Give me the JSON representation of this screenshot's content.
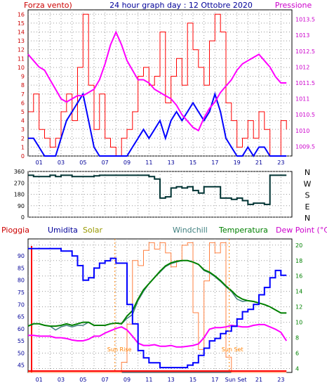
{
  "header": {
    "left_label": "Forza vento)",
    "title": "24 hour graph day : 12 Ottobre 2020",
    "right_label": "Pressione"
  },
  "colors": {
    "wind": "#ff0000",
    "wind_avg": "#0000ff",
    "pressure": "#ff00ff",
    "direction": "#003333",
    "humidity": "#0000ff",
    "solar": "#ff8040",
    "windchill": "#408080",
    "temperature": "#008000",
    "dewpoint": "#ff00ff",
    "rain": "#ff0000",
    "text_blue": "#000099",
    "text_red": "#cc0000",
    "text_olive": "#999900",
    "text_teal": "#408080",
    "text_green": "#008000",
    "text_magenta": "#cc00cc",
    "text_orange": "#ff8000"
  },
  "chart_data": [
    {
      "type": "line",
      "x": [
        0,
        0.5,
        1,
        1.5,
        2,
        2.5,
        3,
        3.5,
        4,
        4.5,
        5,
        5.5,
        6,
        6.5,
        7,
        7.5,
        8,
        8.5,
        9,
        9.5,
        10,
        10.5,
        11,
        11.5,
        12,
        12.5,
        13,
        13.5,
        14,
        14.5,
        15,
        15.5,
        16,
        16.5,
        17,
        17.5,
        18,
        18.5,
        19,
        19.5,
        20,
        20.5,
        21,
        21.5,
        22,
        22.5,
        23,
        23.5
      ],
      "x_tick_labels": [
        "01",
        "03",
        "05",
        "07",
        "09",
        "11",
        "13",
        "15",
        "17",
        "19",
        "21",
        "23"
      ],
      "series": [
        {
          "key": "wind_gust",
          "values": [
            5,
            7,
            3,
            2,
            1,
            2,
            5,
            7,
            4,
            10,
            16,
            8,
            3,
            7,
            2,
            1,
            0,
            2,
            3,
            5,
            9,
            10,
            8,
            9,
            14,
            6,
            9,
            11,
            8,
            15,
            12,
            10,
            8,
            13,
            16,
            14,
            6,
            4,
            1,
            2,
            4,
            2,
            5,
            3,
            0,
            0,
            4,
            3
          ]
        },
        {
          "key": "wind_avg",
          "values": [
            2,
            2,
            1,
            0,
            0,
            0,
            2,
            4,
            5,
            6,
            7,
            4,
            1,
            0,
            0,
            0,
            0,
            0,
            0,
            1,
            2,
            3,
            2,
            3,
            4,
            2,
            4,
            5,
            4,
            5,
            6,
            5,
            4,
            5,
            7,
            5,
            2,
            1,
            0,
            0,
            1,
            0,
            1,
            1,
            0,
            0,
            0,
            0
          ]
        },
        {
          "key": "pressure",
          "values": [
            1012.4,
            1012.2,
            1012.0,
            1011.9,
            1011.6,
            1011.3,
            1011.0,
            1010.9,
            1011.0,
            1011.1,
            1011.1,
            1011.2,
            1011.3,
            1011.6,
            1012.1,
            1012.7,
            1013.1,
            1012.7,
            1012.2,
            1011.9,
            1011.6,
            1011.6,
            1011.5,
            1011.3,
            1011.2,
            1011.1,
            1011.0,
            1010.8,
            1010.5,
            1010.3,
            1010.1,
            1010.0,
            1010.4,
            1010.7,
            1010.9,
            1011.2,
            1011.4,
            1011.6,
            1011.9,
            1012.1,
            1012.2,
            1012.3,
            1012.4,
            1012.2,
            1012.0,
            1011.7,
            1011.5,
            1011.5
          ]
        }
      ],
      "left_ylim": [
        0,
        16.5
      ],
      "left_ticks": [
        0,
        1,
        2,
        3,
        4,
        5,
        6,
        7,
        8,
        9,
        10,
        11,
        12,
        13,
        14,
        15,
        16
      ],
      "right_ylim": [
        1009.2,
        1013.8
      ],
      "right_ticks": [
        1009.5,
        1010,
        1010.5,
        1011,
        1011.5,
        1012,
        1012.5,
        1013,
        1013.5
      ]
    },
    {
      "type": "line",
      "series": [
        {
          "key": "wind_direction",
          "values": [
            330,
            320,
            320,
            320,
            330,
            320,
            330,
            330,
            320,
            320,
            320,
            320,
            325,
            330,
            330,
            330,
            330,
            330,
            330,
            330,
            330,
            330,
            320,
            300,
            150,
            160,
            230,
            240,
            230,
            240,
            210,
            190,
            240,
            240,
            240,
            150,
            150,
            140,
            150,
            130,
            100,
            110,
            110,
            100,
            330,
            330,
            330,
            330
          ]
        }
      ],
      "ylim": [
        0,
        360
      ],
      "left_ticks": [
        0,
        90,
        180,
        270,
        360
      ],
      "compass_labels": [
        "N",
        "W",
        "S",
        "E",
        "N"
      ]
    },
    {
      "type": "line",
      "legend": [
        "Pioggia",
        "Umidita",
        "Solar",
        "Windchill",
        "Temperatura",
        "Dew Point (°C)"
      ],
      "series": [
        {
          "key": "humidity",
          "values": [
            93,
            93,
            93,
            93,
            93,
            93,
            92,
            92,
            90,
            86,
            80,
            81,
            85,
            87,
            88,
            89,
            87,
            87,
            70,
            62,
            51,
            48,
            46,
            46,
            44,
            44,
            44,
            44,
            44,
            45,
            46,
            49,
            52,
            55,
            56,
            58,
            59,
            61,
            64,
            67,
            68,
            70,
            74,
            77,
            81,
            84,
            82,
            82
          ]
        },
        {
          "key": "temperature",
          "values": [
            9.5,
            9.8,
            9.8,
            9.6,
            9.5,
            9.5,
            9.6,
            9.8,
            9.6,
            9.8,
            10.0,
            10.0,
            9.6,
            9.6,
            9.6,
            9.8,
            9.9,
            9.8,
            10.8,
            11.5,
            13.0,
            14.2,
            15.0,
            15.8,
            16.6,
            17.3,
            17.7,
            17.9,
            18.0,
            18.0,
            17.8,
            17.5,
            16.8,
            16.5,
            16.0,
            15.4,
            14.7,
            14.1,
            13.4,
            13.0,
            12.8,
            12.7,
            12.5,
            12.3,
            12.0,
            11.6,
            11.2,
            11.2
          ]
        },
        {
          "key": "windchill",
          "values": [
            9.5,
            9.8,
            9.8,
            9.6,
            9.5,
            9.0,
            9.4,
            9.6,
            9.4,
            9.6,
            9.6,
            10.0,
            9.6,
            9.6,
            9.6,
            9.8,
            9.9,
            9.8,
            10.5,
            11.0,
            12.8,
            14.0,
            15.0,
            15.8,
            16.5,
            17.2,
            17.6,
            17.8,
            18.0,
            18.0,
            17.8,
            17.5,
            16.7,
            16.4,
            15.9,
            15.3,
            14.6,
            14.0,
            13.0,
            12.7,
            12.8,
            12.7,
            12.5,
            12.3,
            12.0,
            11.6,
            11.2,
            11.2
          ]
        },
        {
          "key": "dewpoint",
          "values": [
            8.3,
            8.3,
            8.2,
            8.2,
            8.2,
            8.0,
            8.0,
            7.9,
            7.7,
            7.6,
            7.6,
            7.8,
            8.2,
            8.2,
            8.6,
            8.9,
            9.2,
            9.4,
            9.0,
            8.2,
            7.3,
            7.0,
            7.0,
            7.1,
            6.9,
            6.9,
            7.0,
            6.8,
            6.8,
            6.9,
            7.0,
            7.2,
            8.0,
            9.1,
            9.3,
            9.3,
            9.4,
            9.6,
            9.5,
            9.4,
            9.4,
            9.6,
            9.7,
            9.7,
            9.4,
            9.1,
            8.7,
            7.6
          ]
        },
        {
          "key": "solar",
          "values": [
            0,
            0,
            0,
            0,
            0,
            0,
            0,
            0,
            0,
            0,
            0,
            0,
            0,
            0,
            0,
            0,
            0,
            8,
            38,
            88,
            84,
            96,
            102,
            97,
            102,
            94,
            83,
            88,
            100,
            102,
            47,
            18,
            72,
            102,
            94,
            102,
            12,
            0,
            0,
            0,
            0,
            0,
            0,
            0,
            0,
            0,
            0,
            0
          ]
        },
        {
          "key": "rain",
          "values": [
            0,
            0,
            0,
            0,
            0,
            0,
            0,
            0,
            0,
            0,
            0,
            0,
            0,
            0,
            0,
            0,
            0,
            0,
            0,
            0,
            0,
            0,
            0,
            0,
            0,
            0,
            0,
            0,
            0,
            0,
            0,
            0,
            0,
            0,
            0,
            0,
            0,
            0,
            0,
            0,
            0,
            0,
            0,
            0,
            0,
            0,
            0,
            0
          ]
        }
      ],
      "humidity_ticks": [
        45,
        50,
        55,
        60,
        65,
        70,
        75,
        80,
        85,
        90
      ],
      "humidity_ylim": [
        42,
        97
      ],
      "temp_ticks": [
        4,
        6,
        8,
        10,
        12,
        14,
        16,
        18,
        20
      ],
      "temp_ylim": [
        3.5,
        20.8
      ],
      "solar_ylim": [
        0,
        105
      ],
      "annotations": {
        "sunrise": "Sun Rise",
        "sunset": "Sun Set",
        "sunset_axis": "Sun Set"
      },
      "x_tick_labels": [
        "01",
        "03",
        "05",
        "07",
        "09",
        "11",
        "13",
        "15",
        "17",
        "21",
        "23"
      ]
    }
  ]
}
